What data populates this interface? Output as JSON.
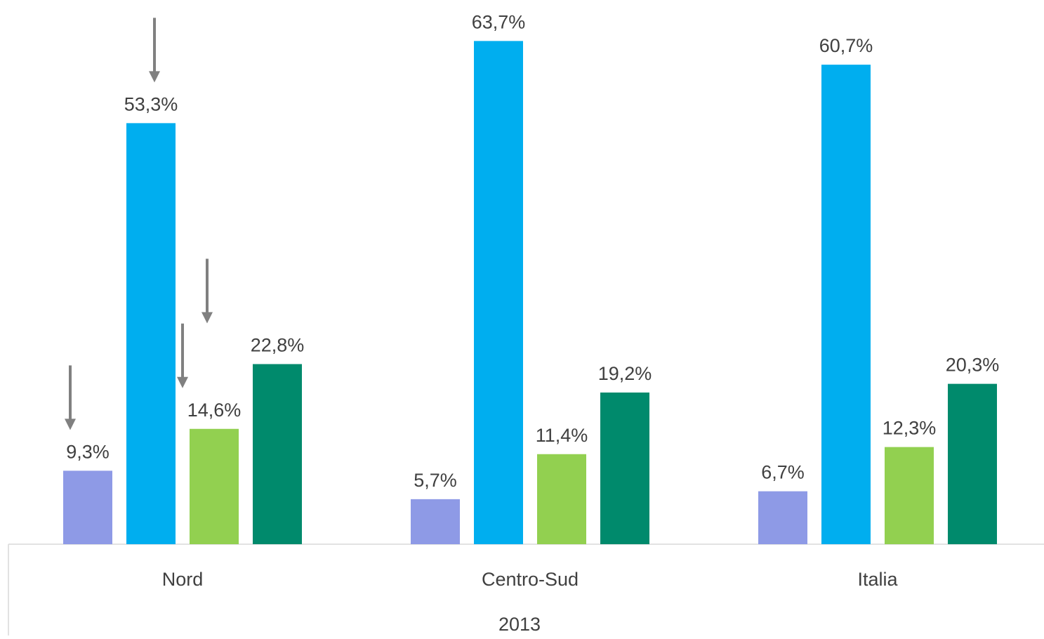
{
  "chart_data": {
    "type": "bar",
    "group_label": "2013",
    "categories": [
      "Nord",
      "Centro-Sud",
      "Italia"
    ],
    "series": [
      {
        "values": [
          9.3,
          5.7,
          6.7
        ],
        "labels": [
          "9,3%",
          "5,7%",
          "6,7%"
        ],
        "color": "#8E9AE6"
      },
      {
        "values": [
          53.3,
          63.7,
          60.7
        ],
        "labels": [
          "53,3%",
          "63,7%",
          "60,7%"
        ],
        "color": "#00AEEF"
      },
      {
        "values": [
          14.6,
          11.4,
          12.3
        ],
        "labels": [
          "14,6%",
          "11,4%",
          "12,3%"
        ],
        "color": "#92D050"
      },
      {
        "values": [
          22.8,
          19.2,
          20.3
        ],
        "labels": [
          "22,8%",
          "19,2%",
          "20,3%"
        ],
        "color": "#008A6C"
      }
    ],
    "ylim": [
      0,
      70
    ],
    "grid": false,
    "legend": "none",
    "annotations": [
      {
        "type": "down-arrow",
        "category": "Nord",
        "series_index": 0
      },
      {
        "type": "down-arrow",
        "category": "Nord",
        "series_index": 1
      },
      {
        "type": "down-arrow",
        "category": "Nord",
        "series_index": 2
      },
      {
        "type": "down-arrow",
        "category": "Nord",
        "series_index": 3
      }
    ],
    "arrow_color": "#808080",
    "axis_color": "#D9D9D9"
  }
}
